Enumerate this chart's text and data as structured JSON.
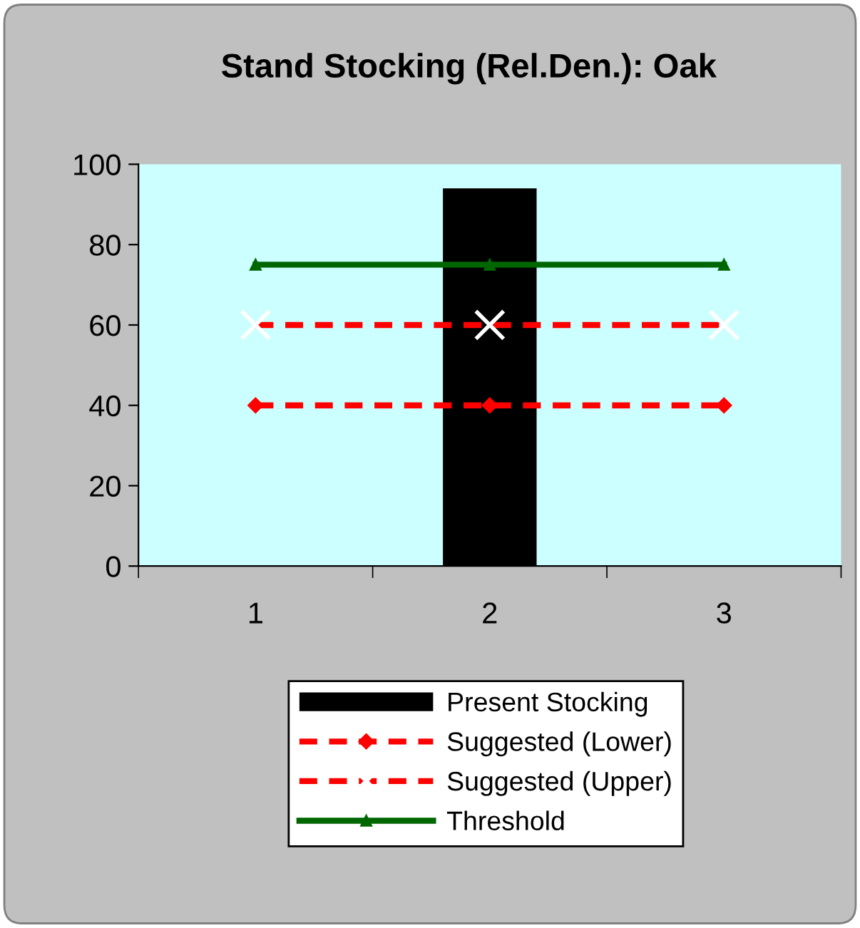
{
  "chart_data": {
    "type": "bar",
    "title": "Stand Stocking (Rel.Den.): Oak",
    "categories": [
      "1",
      "2",
      "3"
    ],
    "series": [
      {
        "name": "Present Stocking",
        "type": "bar",
        "color": "#000000",
        "values": [
          null,
          94,
          null
        ]
      },
      {
        "name": "Suggested (Lower)",
        "type": "line",
        "color": "#ff0000",
        "line_style": "dashed",
        "marker": "diamond",
        "values": [
          40,
          40,
          40
        ]
      },
      {
        "name": "Suggested (Upper)",
        "type": "line",
        "color": "#ff0000",
        "line_style": "dashed",
        "marker": "cross",
        "values": [
          60,
          60,
          60
        ]
      },
      {
        "name": "Threshold",
        "type": "line",
        "color": "#006600",
        "line_style": "solid",
        "marker": "triangle",
        "values": [
          75,
          75,
          75
        ]
      }
    ],
    "ylim": [
      0,
      100
    ],
    "yticks": [
      0,
      20,
      40,
      60,
      80,
      100
    ],
    "grid": false,
    "legend": "bottom"
  }
}
